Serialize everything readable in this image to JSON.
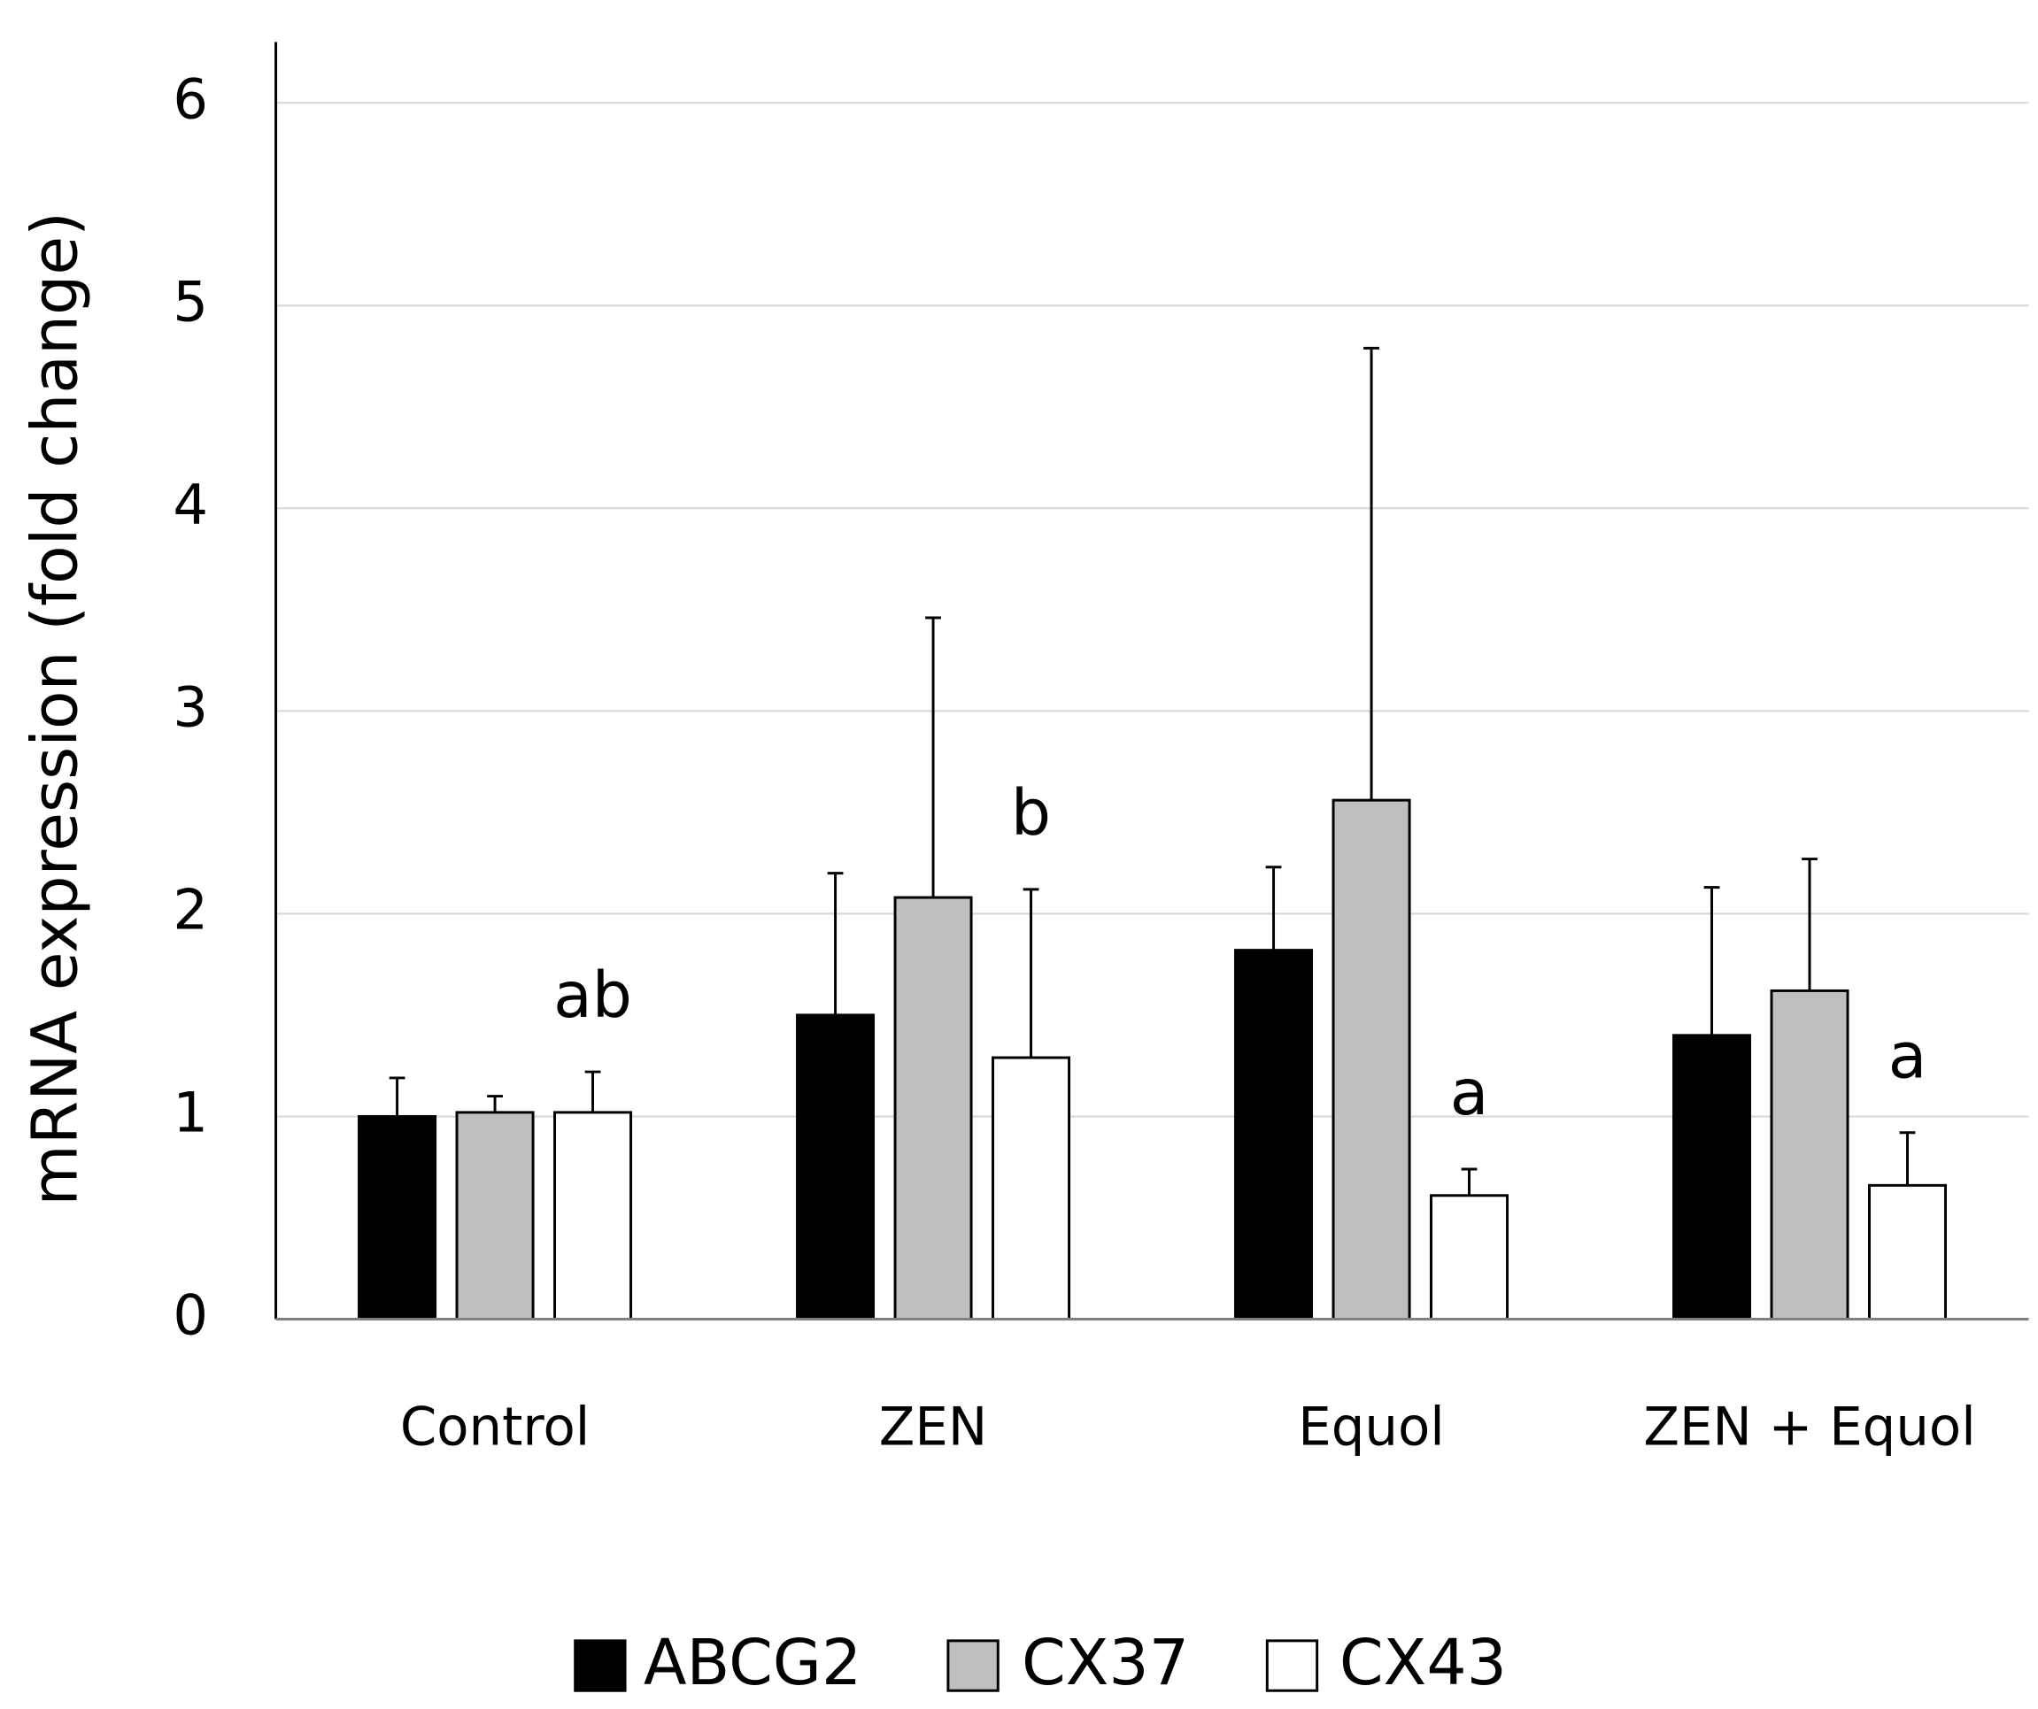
{
  "chart_data": {
    "type": "bar",
    "y_label": "mRNA expression (fold change)",
    "categories": [
      "Control",
      "ZEN",
      "Equol",
      "ZEN + Equol"
    ],
    "series": [
      {
        "name": "ABCG2",
        "color": "#000000",
        "values": [
          1.0,
          1.5,
          1.82,
          1.4
        ],
        "errors": [
          0.19,
          0.7,
          0.41,
          0.73
        ]
      },
      {
        "name": "CX37",
        "color": "#bfbfbf",
        "values": [
          1.02,
          2.08,
          2.56,
          1.62
        ],
        "errors": [
          0.08,
          1.38,
          2.23,
          0.65
        ]
      },
      {
        "name": "CX43",
        "color": "#ffffff",
        "values": [
          1.02,
          1.29,
          0.61,
          0.66
        ],
        "errors": [
          0.2,
          0.83,
          0.13,
          0.26
        ],
        "annotations": [
          "ab",
          "b",
          "a",
          "a"
        ]
      }
    ],
    "ylim": [
      0,
      6.3
    ],
    "yticks": [
      0,
      1,
      2,
      3,
      4,
      5,
      6
    ],
    "grid": true
  }
}
